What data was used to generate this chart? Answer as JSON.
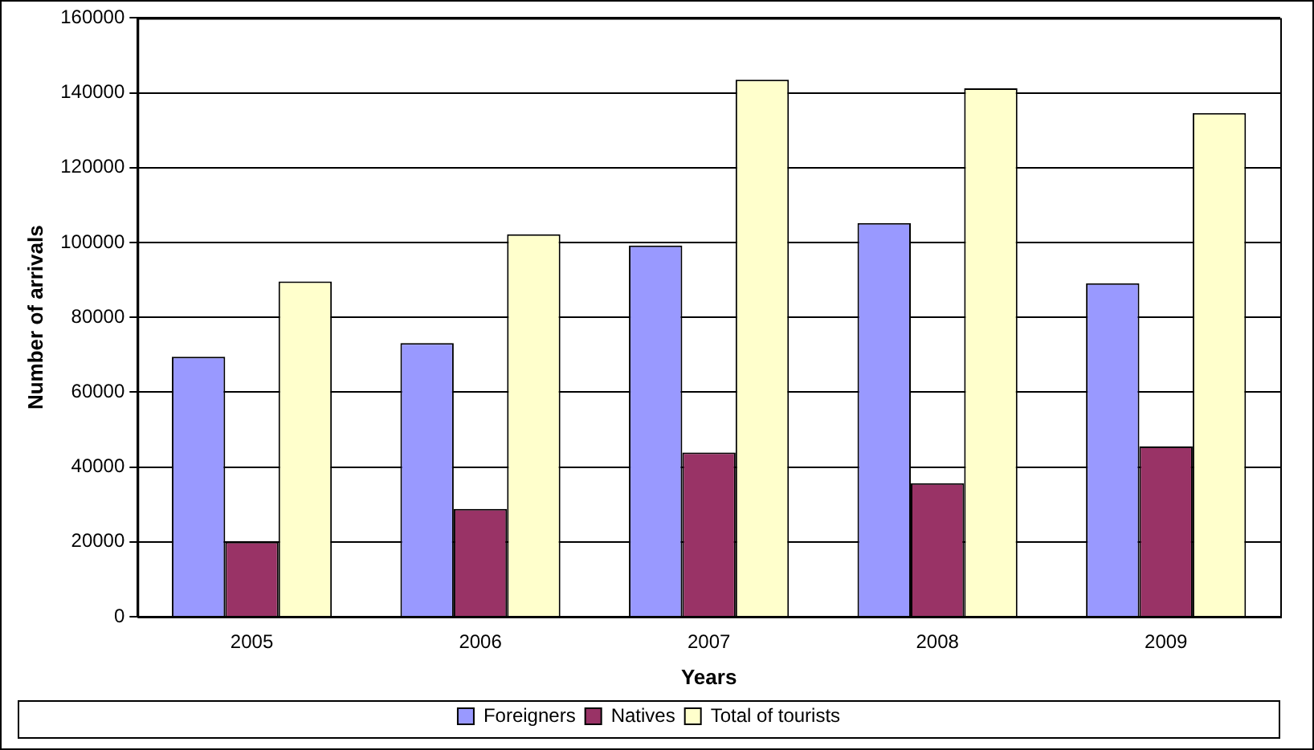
{
  "chart_data": {
    "type": "bar",
    "xlabel": "Years",
    "ylabel": "Number of arrivals",
    "categories": [
      "2005",
      "2006",
      "2007",
      "2008",
      "2009"
    ],
    "series": [
      {
        "name": "Foreigners",
        "color": "#9999ff",
        "values": [
          69500,
          73100,
          99200,
          105200,
          89100
        ]
      },
      {
        "name": "Natives",
        "color": "#993366",
        "values": [
          20000,
          28800,
          43900,
          35700,
          45500
        ]
      },
      {
        "name": "Total of tourists",
        "color": "#ffffcc",
        "values": [
          89600,
          102200,
          143500,
          141200,
          134600
        ]
      }
    ],
    "ylim": [
      0,
      160000
    ],
    "yticks": [
      0,
      20000,
      40000,
      60000,
      80000,
      100000,
      120000,
      140000,
      160000
    ],
    "grid": "y",
    "legend": "bottom"
  }
}
